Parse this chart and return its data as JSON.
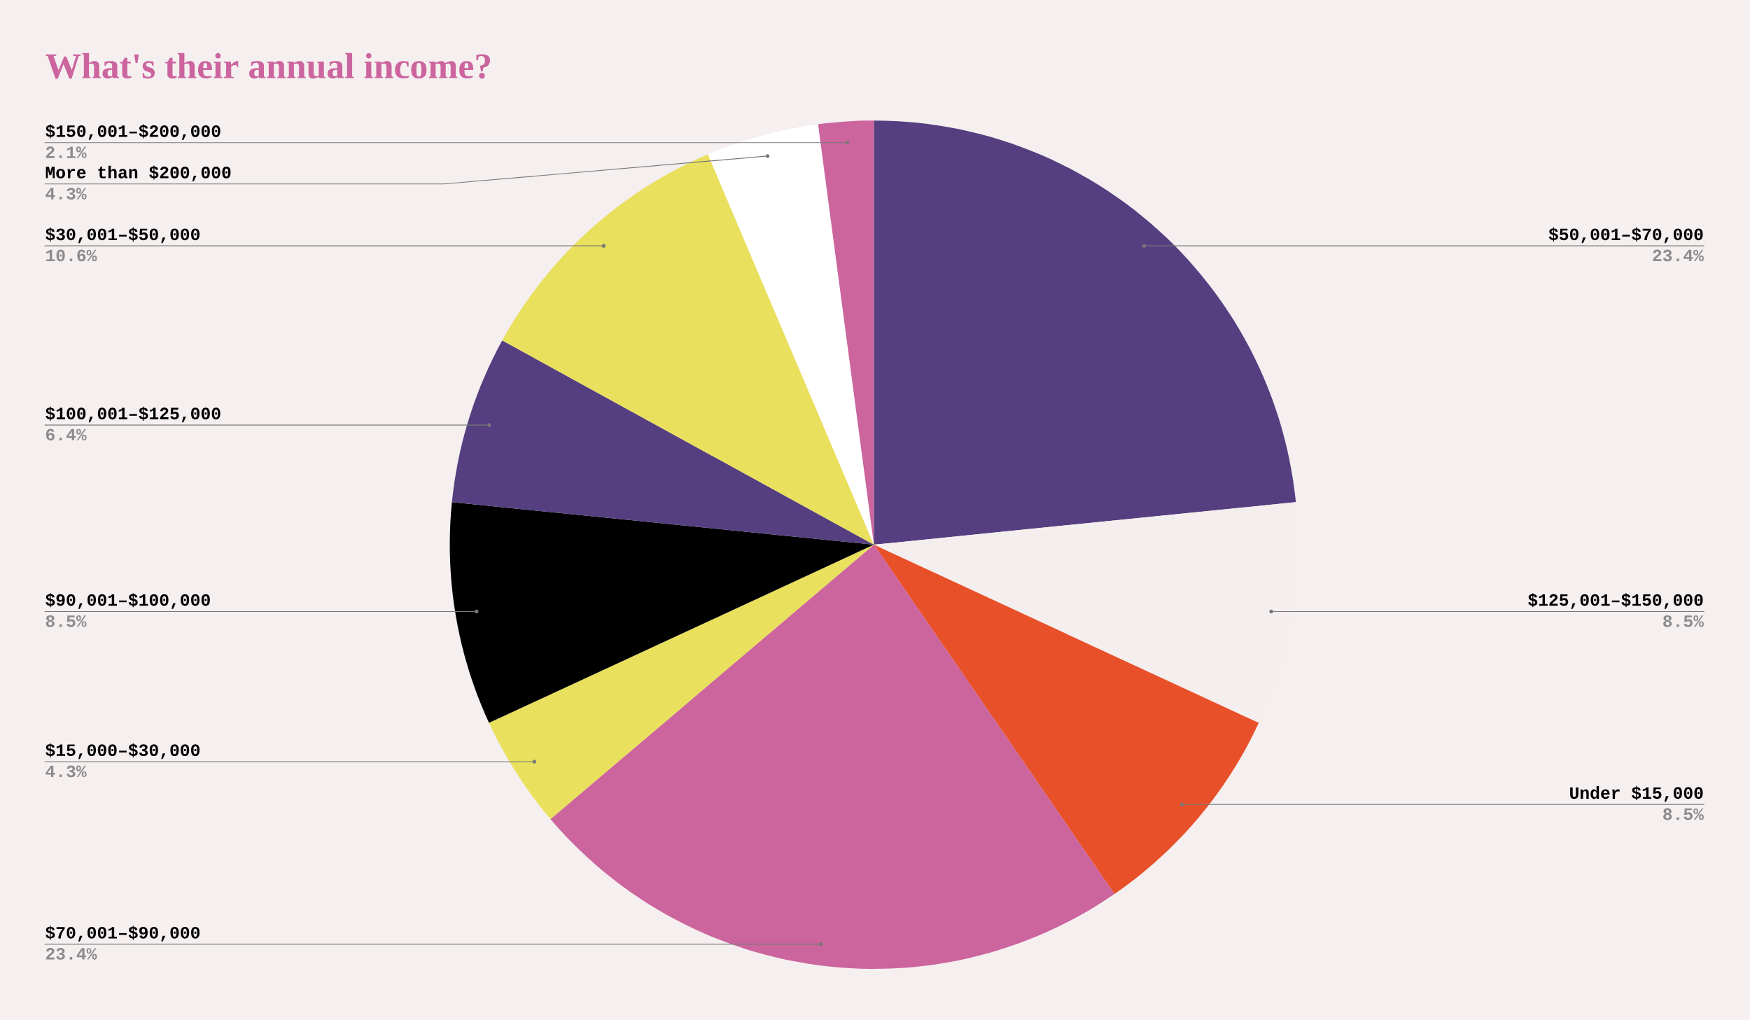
{
  "chart_data": {
    "type": "pie",
    "title": "What's their annual income?",
    "categories": [
      "$50,001–$70,000",
      "$125,001–$150,000",
      "Under $15,000",
      "$70,001–$90,000",
      "$15,000–$30,000",
      "$90,001–$100,000",
      "$100,001–$125,000",
      "$30,001–$50,000",
      "More than $200,000",
      "$150,001–$200,000"
    ],
    "values": [
      23.4,
      8.5,
      8.5,
      23.4,
      4.3,
      8.5,
      6.4,
      10.6,
      4.3,
      2.1
    ],
    "colors": [
      "#553f80",
      "#f5eeee",
      "#e8502a",
      "#cc649e",
      "#e9e05e",
      "#000000",
      "#553f80",
      "#e9e05e",
      "#ffffff",
      "#cc649e"
    ],
    "value_labels": [
      "23.4%",
      "8.5%",
      "8.5%",
      "23.4%",
      "4.3%",
      "8.5%",
      "6.4%",
      "10.6%",
      "4.3%",
      "2.1%"
    ]
  }
}
